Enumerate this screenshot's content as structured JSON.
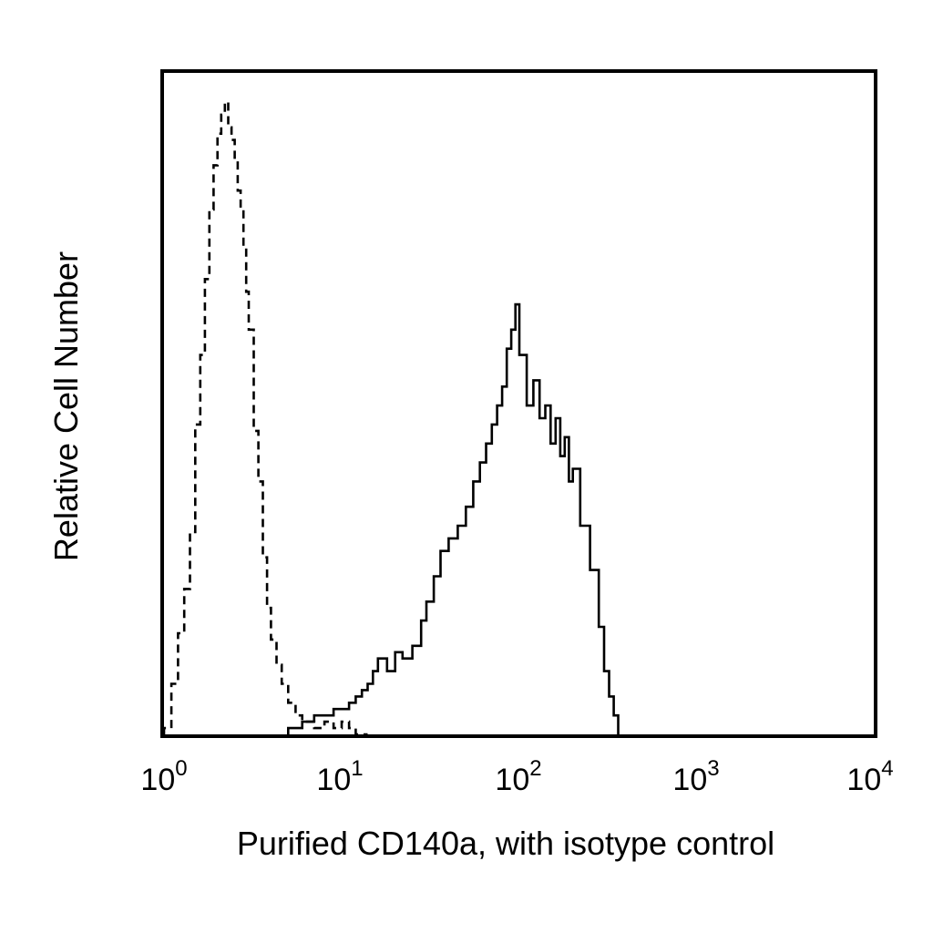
{
  "chart_data": {
    "type": "line",
    "title": "",
    "xlabel": "Purified CD140a, with isotype control",
    "ylabel": "Relative Cell Number",
    "x_scale": "log",
    "xlim": [
      1,
      10000
    ],
    "ylim": [
      0,
      1
    ],
    "x_ticks": [
      {
        "base": "10",
        "exp": "0"
      },
      {
        "base": "10",
        "exp": "1"
      },
      {
        "base": "10",
        "exp": "2"
      },
      {
        "base": "10",
        "exp": "3"
      },
      {
        "base": "10",
        "exp": "4"
      }
    ],
    "y_ticks": [],
    "grid": false,
    "legend": "none",
    "series": [
      {
        "style": "dashed",
        "color": "#000000",
        "x": [
          1.0,
          1.1,
          1.2,
          1.3,
          1.4,
          1.5,
          1.6,
          1.7,
          1.8,
          1.9,
          2.0,
          2.1,
          2.2,
          2.3,
          2.4,
          2.5,
          2.6,
          2.7,
          2.8,
          2.9,
          3.0,
          3.2,
          3.4,
          3.6,
          3.8,
          4.0,
          4.3,
          4.6,
          5.0,
          5.5,
          6.0,
          7.0,
          8.0,
          9.0,
          10,
          11,
          12,
          14
        ],
        "y": [
          0.01,
          0.08,
          0.16,
          0.23,
          0.32,
          0.49,
          0.6,
          0.72,
          0.83,
          0.9,
          0.95,
          0.98,
          1.0,
          0.96,
          0.94,
          0.91,
          0.86,
          0.83,
          0.77,
          0.7,
          0.64,
          0.48,
          0.4,
          0.28,
          0.2,
          0.15,
          0.11,
          0.08,
          0.05,
          0.03,
          0.02,
          0.01,
          0.02,
          0.01,
          0.02,
          0.01,
          0.0,
          0.0
        ]
      },
      {
        "style": "solid",
        "color": "#000000",
        "x": [
          5.0,
          6.0,
          7.0,
          8.0,
          9.0,
          10,
          11,
          12,
          13,
          14,
          15,
          16,
          18,
          20,
          22,
          25,
          28,
          30,
          33,
          36,
          40,
          45,
          50,
          55,
          60,
          65,
          70,
          75,
          80,
          85,
          90,
          95,
          100,
          110,
          120,
          130,
          140,
          150,
          160,
          170,
          180,
          190,
          200,
          220,
          250,
          280,
          300,
          320,
          340,
          360
        ],
        "y": [
          0.01,
          0.02,
          0.03,
          0.03,
          0.04,
          0.04,
          0.05,
          0.06,
          0.07,
          0.08,
          0.1,
          0.12,
          0.1,
          0.13,
          0.12,
          0.14,
          0.18,
          0.21,
          0.25,
          0.29,
          0.31,
          0.33,
          0.36,
          0.4,
          0.43,
          0.46,
          0.49,
          0.52,
          0.55,
          0.61,
          0.64,
          0.68,
          0.6,
          0.52,
          0.56,
          0.5,
          0.52,
          0.46,
          0.5,
          0.44,
          0.47,
          0.4,
          0.42,
          0.33,
          0.26,
          0.17,
          0.1,
          0.06,
          0.03,
          0.0
        ]
      }
    ]
  }
}
